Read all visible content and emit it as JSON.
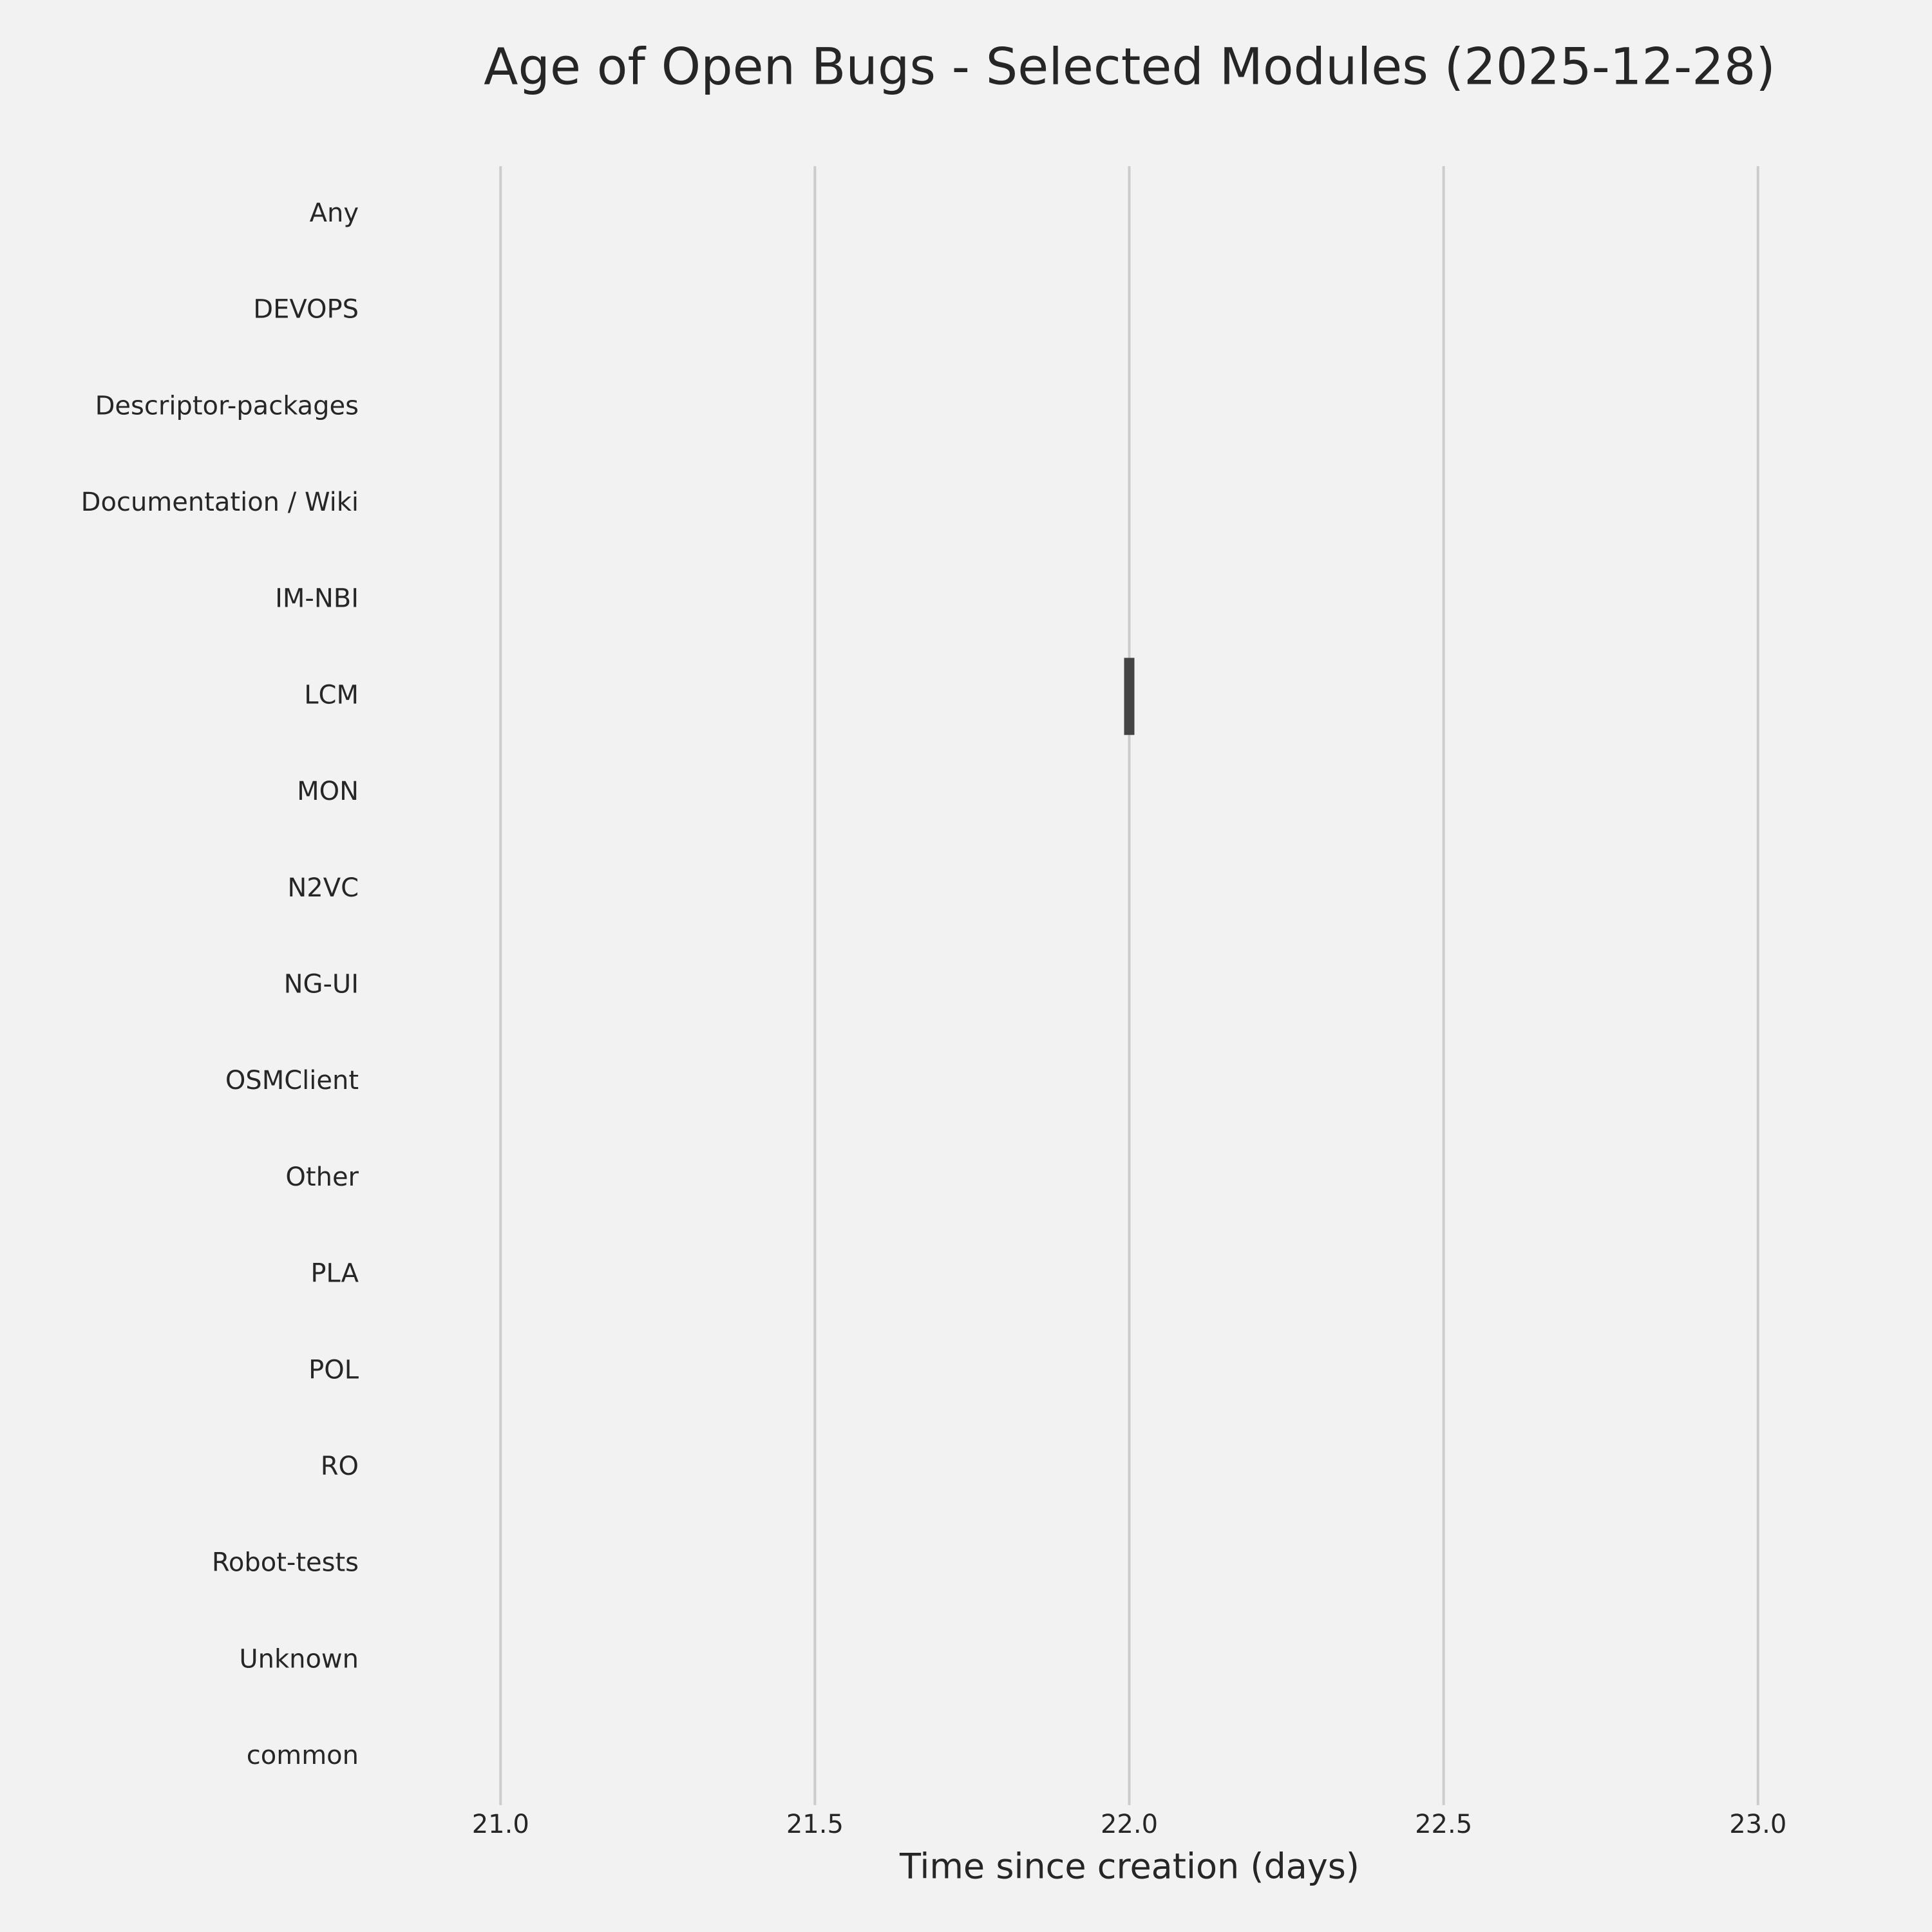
{
  "chart_data": {
    "type": "box",
    "title": "Age of Open Bugs - Selected Modules (2025-12-28)",
    "x_label": "Time since creation (days)",
    "categories": [
      "Any",
      "DEVOPS",
      "Descriptor-packages",
      "Documentation / Wiki",
      "IM-NBI",
      "LCM",
      "MON",
      "N2VC",
      "NG-UI",
      "OSMClient",
      "Other",
      "PLA",
      "POL",
      "RO",
      "Robot-tests",
      "Unknown",
      "common"
    ],
    "boxes": [
      null,
      null,
      null,
      null,
      null,
      {
        "min": 22,
        "q1": 22,
        "median": 22,
        "q3": 22,
        "max": 22
      },
      null,
      null,
      null,
      null,
      null,
      null,
      null,
      null,
      null,
      null,
      null
    ],
    "color": "#444444",
    "xlim": [
      20.8,
      23.2
    ],
    "xticks": [
      {
        "value": 21,
        "label": "21.0"
      },
      {
        "value": 21.5,
        "label": "21.5"
      },
      {
        "value": 22,
        "label": "22.0"
      },
      {
        "value": 22.5,
        "label": "22.5"
      },
      {
        "value": 23,
        "label": "23.0"
      }
    ],
    "grid": true
  }
}
